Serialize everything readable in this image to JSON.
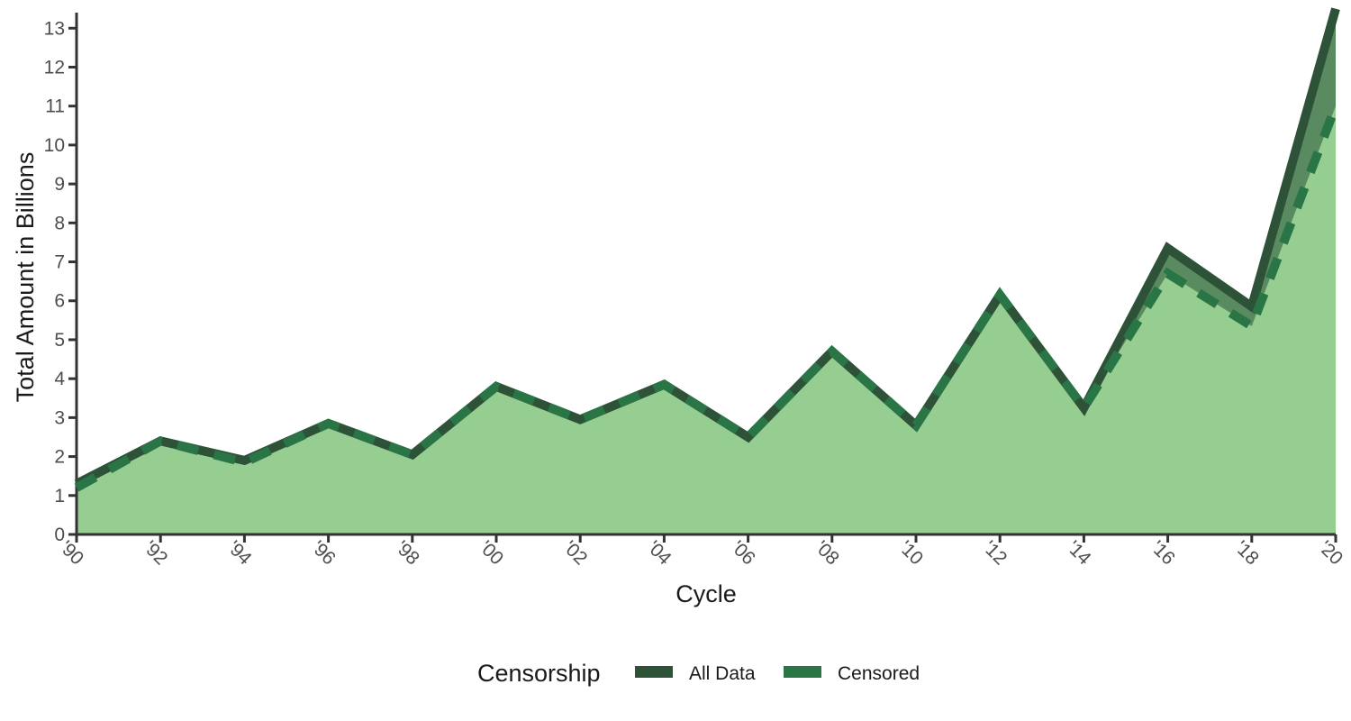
{
  "chart_data": {
    "type": "area",
    "xlabel": "Cycle",
    "ylabel": "Total Amount in Billions",
    "ylim": [
      0,
      13.4
    ],
    "y_ticks": [
      0,
      1,
      2,
      3,
      4,
      5,
      6,
      7,
      8,
      9,
      10,
      11,
      12,
      13
    ],
    "y_tick_labels": [
      "0",
      "1",
      "2",
      "3",
      "4",
      "5",
      "6",
      "7",
      "8",
      "9",
      "10",
      "11",
      "12",
      "13"
    ],
    "categories": [
      "'90",
      "'92",
      "'94",
      "'96",
      "'98",
      "'00",
      "'02",
      "'04",
      "'06",
      "'08",
      "'10",
      "'12",
      "'14",
      "'16",
      "'18",
      "'20"
    ],
    "x": [
      1990,
      1992,
      1994,
      1996,
      1998,
      2000,
      2002,
      2004,
      2006,
      2008,
      2010,
      2012,
      2014,
      2016,
      2018,
      2020
    ],
    "series": [
      {
        "name": "All Data",
        "values": [
          1.3,
          2.4,
          1.9,
          2.85,
          2.05,
          3.8,
          2.95,
          3.85,
          2.5,
          4.7,
          2.8,
          6.15,
          3.25,
          7.35,
          5.85,
          13.5
        ],
        "line_color": "#2d5238",
        "fill_color": "#5a8a60",
        "line_style": "solid"
      },
      {
        "name": "Censored",
        "values": [
          1.2,
          2.4,
          1.85,
          2.85,
          2.05,
          3.8,
          2.95,
          3.85,
          2.5,
          4.7,
          2.8,
          6.15,
          3.25,
          6.7,
          5.35,
          11.0
        ],
        "line_color": "#2a7545",
        "fill_color": "#96cd91",
        "line_style": "dashed"
      }
    ],
    "grid": false,
    "legend": {
      "title": "Censorship",
      "placement": "bottom",
      "entries": [
        "All Data",
        "Censored"
      ]
    }
  }
}
